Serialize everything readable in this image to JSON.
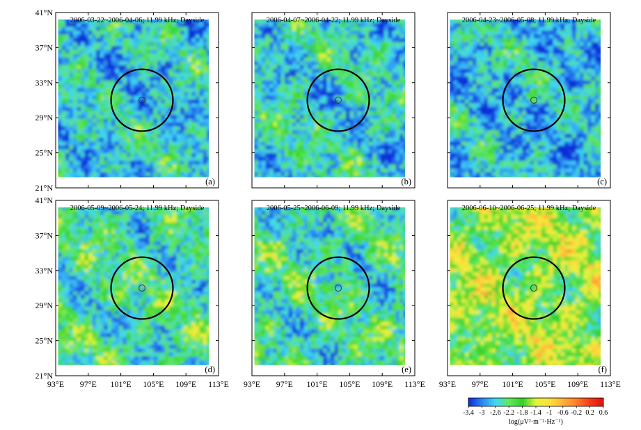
{
  "chart_data": {
    "type": "heatmap",
    "layout": "2x3 small multiples",
    "x_axis": {
      "min": 93,
      "max": 113,
      "ticks": [
        "93°E",
        "97°E",
        "101°E",
        "105°E",
        "109°E",
        "113°E"
      ]
    },
    "y_axis": {
      "min": 21,
      "max": 41,
      "ticks": [
        "21°N",
        "25°N",
        "29°N",
        "33°N",
        "37°N",
        "41°N"
      ]
    },
    "epicenter": {
      "lon": 103.6,
      "lat": 31.0
    },
    "panels": [
      {
        "label": "(a)",
        "title": "2006-03-22~2006-04-06; 11.99 kHz; Dayside",
        "mean_level": -2.6
      },
      {
        "label": "(b)",
        "title": "2006-04-07~2006-04-22; 11.99 kHz; Dayside",
        "mean_level": -2.5
      },
      {
        "label": "(c)",
        "title": "2006-04-23~2006-05-08; 11.99 kHz; Dayside",
        "mean_level": -2.7
      },
      {
        "label": "(d)",
        "title": "2006-05-09~2006-05-24; 11.99 kHz; Dayside",
        "mean_level": -2.3
      },
      {
        "label": "(e)",
        "title": "2006-05-25~2006-06-09; 11.99 kHz; Dayside",
        "mean_level": -2.3
      },
      {
        "label": "(f)",
        "title": "2006-06-10~2006-06-25; 11.99 kHz; Dayside",
        "mean_level": -1.7
      }
    ],
    "colorbar": {
      "label": "log(μV²·m⁻²·Hz⁻¹)",
      "min": -3.4,
      "max": 0.6,
      "ticks": [
        "-3.4",
        "-3",
        "-2.6",
        "-2.2",
        "-1.8",
        "-1.4",
        "-1",
        "-0.6",
        "-0.2",
        "0.2",
        "0.6"
      ],
      "colors": [
        "#0a2bd8",
        "#2a86f0",
        "#3fd8f5",
        "#62e85a",
        "#2fd12c",
        "#e3f53a",
        "#ffe03c",
        "#ffb13a",
        "#ff7d2a",
        "#f53a1a",
        "#e01010"
      ]
    }
  }
}
